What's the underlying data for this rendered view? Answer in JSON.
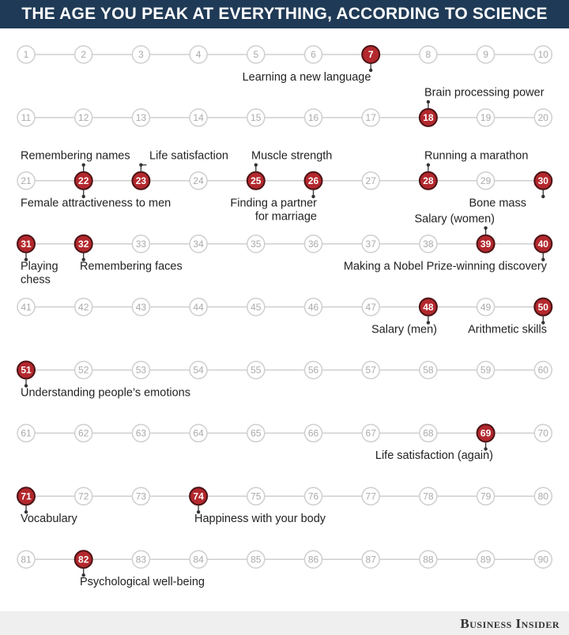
{
  "header": {
    "title": "THE AGE YOU PEAK AT EVERYTHING, ACCORDING TO SCIENCE"
  },
  "ages": [
    1,
    2,
    3,
    4,
    5,
    6,
    7,
    8,
    9,
    10,
    11,
    12,
    13,
    14,
    15,
    16,
    17,
    18,
    19,
    20,
    21,
    22,
    23,
    24,
    25,
    26,
    27,
    28,
    29,
    30,
    31,
    32,
    33,
    34,
    35,
    36,
    37,
    38,
    39,
    40,
    41,
    42,
    43,
    44,
    45,
    46,
    47,
    48,
    49,
    50,
    51,
    52,
    53,
    54,
    55,
    56,
    57,
    58,
    59,
    60,
    61,
    62,
    63,
    64,
    65,
    66,
    67,
    68,
    69,
    70,
    71,
    72,
    73,
    74,
    75,
    76,
    77,
    78,
    79,
    80,
    81,
    82,
    83,
    84,
    85,
    86,
    87,
    88,
    89,
    90
  ],
  "highlights": [
    {
      "age": 7,
      "side": "below",
      "label": [
        "Learning a new language"
      ]
    },
    {
      "age": 18,
      "side": "above",
      "label": [
        "Brain processing power"
      ]
    },
    {
      "age": 22,
      "side": "above",
      "label": [
        "Remembering names"
      ]
    },
    {
      "age": 23,
      "side": "above",
      "label": [
        "Life satisfaction"
      ]
    },
    {
      "age": 25,
      "side": "above",
      "label": [
        "Muscle strength"
      ]
    },
    {
      "age": 28,
      "side": "above",
      "label": [
        "Running a marathon"
      ]
    },
    {
      "age": 22,
      "side": "below",
      "label": [
        "Female attractiveness to men"
      ]
    },
    {
      "age": 26,
      "side": "below",
      "label": [
        "Finding a partner",
        "for marriage"
      ]
    },
    {
      "age": 30,
      "side": "below",
      "label": [
        "Bone mass"
      ]
    },
    {
      "age": 39,
      "side": "above",
      "label": [
        "Salary (women)"
      ]
    },
    {
      "age": 31,
      "side": "below",
      "label": [
        "Playing",
        "chess"
      ]
    },
    {
      "age": 32,
      "side": "below",
      "label": [
        "Remembering faces"
      ]
    },
    {
      "age": 40,
      "side": "below",
      "label": [
        "Making a Nobel Prize-winning discovery"
      ]
    },
    {
      "age": 48,
      "side": "below",
      "label": [
        "Salary (men)"
      ]
    },
    {
      "age": 50,
      "side": "below",
      "label": [
        "Arithmetic skills"
      ]
    },
    {
      "age": 51,
      "side": "below",
      "label": [
        "Understanding people’s emotions"
      ]
    },
    {
      "age": 69,
      "side": "below",
      "label": [
        "Life satisfaction (again)"
      ]
    },
    {
      "age": 71,
      "side": "below",
      "label": [
        "Vocabulary"
      ]
    },
    {
      "age": 74,
      "side": "below",
      "label": [
        "Happiness with your body"
      ]
    },
    {
      "age": 82,
      "side": "below",
      "label": [
        "Psychological well-being"
      ]
    }
  ],
  "footer": {
    "brand": "Business Insider"
  }
}
